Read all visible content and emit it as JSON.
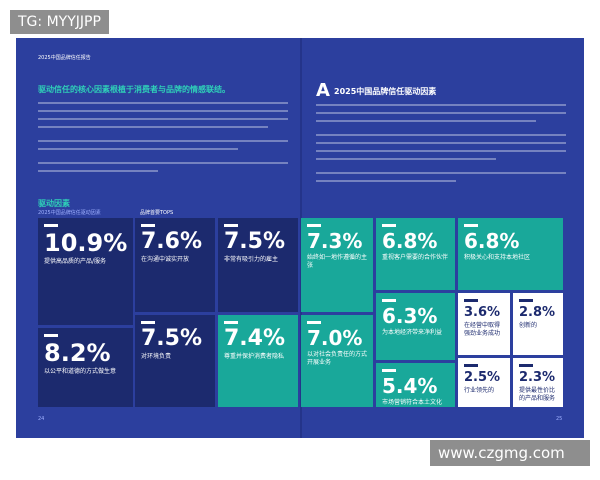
{
  "watermark_top": "TG: MYYJJPP",
  "watermark_bottom": "www.czgmg.com",
  "left_page": {
    "header": "2025中国品牌信任报告",
    "heading": "驱动信任的核心因素根植于消费者与品牌的情感联结。",
    "section": "驱动因素",
    "section_sub": "2025中国品牌信任驱动因素",
    "tiles_caption": "品牌首要TOPS"
  },
  "right_page": {
    "heading": "2025中国品牌信任驱动因素"
  },
  "tiles": [
    {
      "value": "10.9%",
      "label": "提供高品质的产品/服务"
    },
    {
      "value": "8.2%",
      "label": "以公平和道德的方式做生意"
    },
    {
      "value": "7.6%",
      "label": "在沟通中诚实开放"
    },
    {
      "value": "7.5%",
      "label": "非常有吸引力的雇主"
    },
    {
      "value": "7.5%",
      "label": "对环境负责"
    },
    {
      "value": "7.4%",
      "label": "尊重并保护消费者隐私"
    },
    {
      "value": "7.3%",
      "label": "始终如一地作遵循的主张"
    },
    {
      "value": "7.0%",
      "label": "以对社会负责任的方式开展业务"
    },
    {
      "value": "6.8%",
      "label": "重视客户需要的合作伙伴"
    },
    {
      "value": "6.8%",
      "label": "积极关心和支持本地社区"
    },
    {
      "value": "6.3%",
      "label": "为本地经济带来净利益"
    },
    {
      "value": "5.4%",
      "label": "市场营销符合本土文化"
    },
    {
      "value": "3.6%",
      "label": "在经营中取得强劲业务成功"
    },
    {
      "value": "2.8%",
      "label": "创新的"
    },
    {
      "value": "2.5%",
      "label": "行业领先的"
    },
    {
      "value": "2.3%",
      "label": "提供最性价比的产品和服务"
    }
  ]
}
